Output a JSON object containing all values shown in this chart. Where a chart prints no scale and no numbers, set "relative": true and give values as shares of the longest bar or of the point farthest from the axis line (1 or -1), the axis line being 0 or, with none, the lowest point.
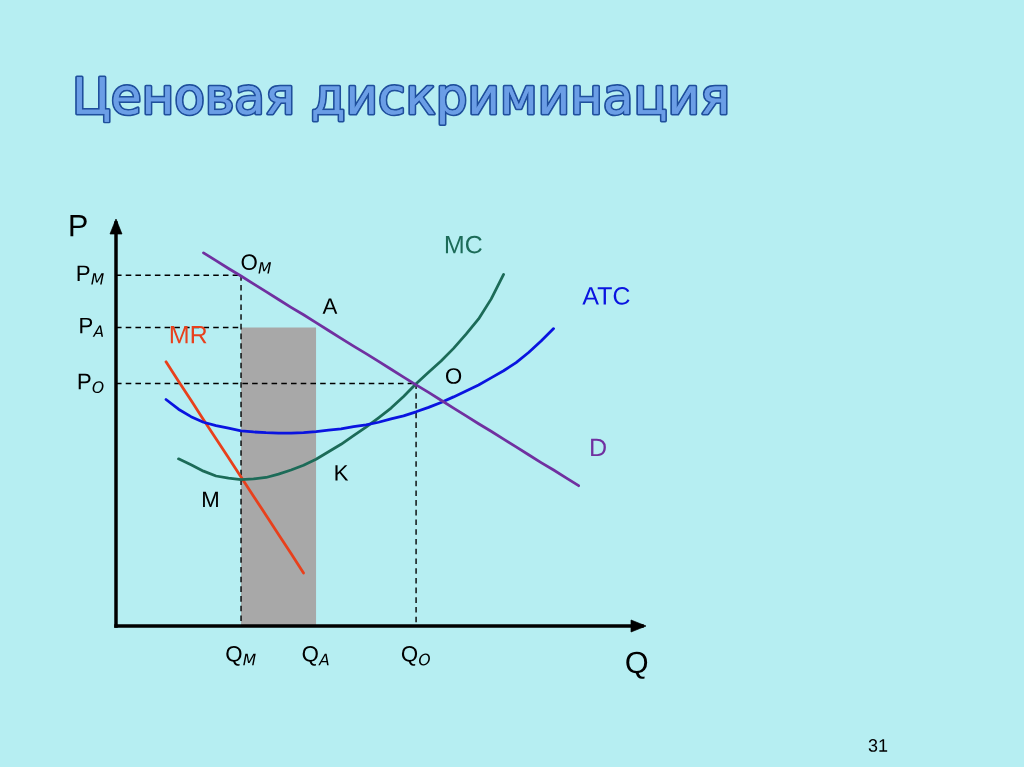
{
  "chart_data": {
    "type": "line",
    "relative": true,
    "title": "Ценовая дискриминация",
    "xlabel": "Q",
    "ylabel": "P",
    "line_style": "solid",
    "categories": [
      null,
      null,
      null,
      null,
      null,
      null,
      null,
      null,
      null,
      null,
      "Q$_{M}$",
      null,
      null,
      null,
      null,
      null,
      "Q$_{A}$",
      null,
      null,
      null,
      null,
      null,
      null,
      null,
      "Q$_{O}$",
      null,
      null,
      null,
      null,
      null,
      null,
      null,
      null,
      null,
      null,
      null,
      null,
      null
    ],
    "series": [
      {
        "type": "area",
        "color": "#a8a8a8",
        "values": [
          null,
          null,
          null,
          null,
          null,
          null,
          null,
          null,
          null,
          null,
          0.8,
          0.8,
          0.8,
          0.8,
          0.8,
          0.8,
          0.8,
          null,
          null,
          null,
          null,
          null,
          null,
          null,
          null,
          null,
          null,
          null,
          null,
          null,
          null,
          null,
          null,
          null,
          null,
          null,
          null,
          null
        ]
      },
      {
        "type": "line",
        "name": "P$_{M}$",
        "color": "#000000",
        "line_style": "dashed",
        "values": [
          0.94,
          0.94,
          0.94,
          0.94,
          0.94,
          0.94,
          0.94,
          0.94,
          0.94,
          0.94,
          0.94,
          null,
          null,
          null,
          null,
          null,
          null,
          null,
          null,
          null,
          null,
          null,
          null,
          null,
          null,
          null,
          null,
          null,
          null,
          null,
          null,
          null,
          null,
          null,
          null,
          null,
          null,
          null
        ]
      },
      {
        "type": "line",
        "name": "P$_{A}$",
        "color": "#000000",
        "line_style": "dashed",
        "values": [
          0.8,
          0.8,
          0.8,
          0.8,
          0.8,
          0.8,
          0.8,
          0.8,
          0.8,
          0.8,
          0.8,
          null,
          null,
          null,
          null,
          null,
          null,
          null,
          null,
          null,
          null,
          null,
          null,
          null,
          null,
          null,
          null,
          null,
          null,
          null,
          null,
          null,
          null,
          null,
          null,
          null,
          null,
          null
        ]
      },
      {
        "type": "line",
        "name": "P$_{O}$",
        "color": "#000000",
        "line_style": "dashed",
        "values": [
          0.65,
          0.65,
          0.65,
          0.65,
          0.65,
          0.65,
          0.65,
          0.65,
          0.65,
          0.65,
          0.65,
          0.65,
          0.65,
          0.65,
          0.65,
          0.65,
          0.65,
          0.65,
          0.65,
          0.65,
          0.65,
          0.65,
          0.65,
          0.65,
          0.65,
          null,
          null,
          null,
          null,
          null,
          null,
          null,
          null,
          null,
          null,
          null,
          null,
          null
        ]
      },
      {
        "type": "line",
        "color": "#000000",
        "line_style": "dashed",
        "x": [
          "Q$_{M}$",
          "Q$_{M}$"
        ],
        "values": [
          0.94,
          0
        ]
      },
      {
        "type": "line",
        "color": "#000000",
        "line_style": "dashed",
        "x": [
          "Q$_{O}$",
          "Q$_{O}$"
        ],
        "values": [
          0.65,
          0
        ]
      },
      {
        "name": "MR",
        "color": "#e8401c",
        "values": [
          null,
          null,
          null,
          null,
          0.708,
          0.656,
          0.605,
          0.553,
          0.502,
          0.451,
          0.399,
          0.348,
          0.297,
          0.245,
          0.194,
          0.142,
          null,
          null,
          null,
          null,
          null,
          null,
          null,
          null,
          null,
          null,
          null,
          null,
          null,
          null,
          null,
          null,
          null,
          null,
          null,
          null,
          null,
          null
        ]
      },
      {
        "name": "MC",
        "color": "#1c6b58",
        "values": [
          null,
          null,
          null,
          null,
          null,
          0.448,
          0.432,
          0.415,
          0.402,
          0.396,
          0.392,
          0.394,
          0.398,
          0.407,
          0.418,
          0.431,
          0.447,
          0.467,
          0.487,
          0.51,
          0.533,
          0.558,
          0.584,
          0.615,
          0.649,
          0.68,
          0.71,
          0.744,
          0.782,
          0.823,
          0.876,
          0.942,
          null,
          null,
          null,
          null,
          null,
          null
        ]
      },
      {
        "name": "ATC",
        "color": "#0a14e0",
        "values": [
          null,
          null,
          null,
          null,
          0.607,
          0.581,
          0.561,
          0.546,
          0.537,
          0.53,
          0.523,
          0.52,
          0.518,
          0.517,
          0.517,
          0.518,
          0.521,
          0.525,
          0.528,
          0.534,
          0.539,
          0.546,
          0.555,
          0.563,
          0.574,
          0.586,
          0.599,
          0.614,
          0.63,
          0.646,
          0.665,
          0.684,
          0.706,
          0.733,
          0.764,
          0.797,
          null,
          null
        ]
      },
      {
        "name": "D",
        "color": "#7030a0",
        "values": [
          null,
          null,
          null,
          null,
          null,
          null,
          null,
          1.0,
          0.979,
          0.958,
          0.938,
          0.917,
          0.896,
          0.875,
          0.854,
          0.834,
          0.813,
          0.792,
          0.771,
          0.75,
          0.73,
          0.709,
          0.688,
          0.667,
          0.646,
          0.626,
          0.605,
          0.584,
          0.563,
          0.542,
          0.522,
          0.501,
          0.48,
          0.459,
          0.438,
          0.418,
          0.397,
          0.376
        ]
      }
    ],
    "annotations": [
      {
        "text": "O$_{M}$",
        "x": "Q$_{M}$",
        "y": 0.94
      },
      {
        "text": "A",
        "x": "Q$_{A}$",
        "y": 0.8
      },
      {
        "text": "O",
        "x": "Q$_{O}$",
        "y": 0.65
      },
      {
        "text": "K",
        "x": "Q$_{A}$",
        "y": 0.45
      },
      {
        "text": "M",
        "x": "Q$_{M}$",
        "y": 0.39
      },
      "31"
    ]
  }
}
